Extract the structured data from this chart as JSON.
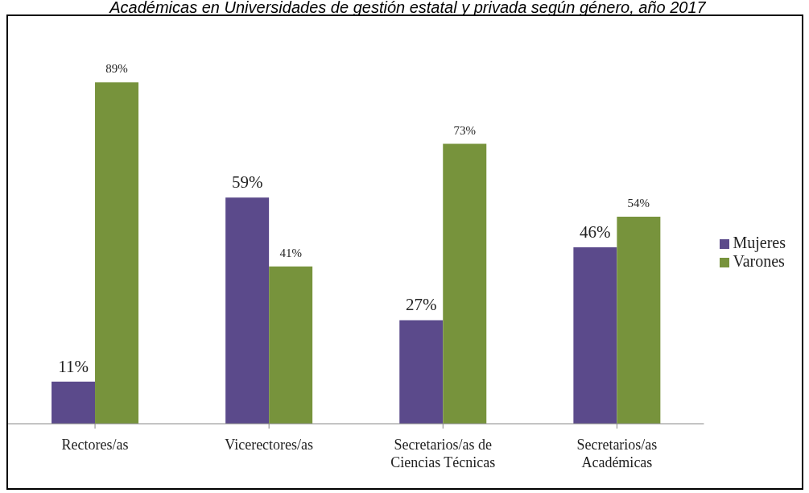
{
  "chart_data": {
    "type": "bar",
    "title": "Académicas en Universidades de gestión estatal y privada según género, año 2017",
    "categories": [
      "Rectores/as",
      "Vicerectores/as",
      "Secretarios/as de Ciencias Técnicas",
      "Secretarios/as Académicas"
    ],
    "series": [
      {
        "name": "Mujeres",
        "color": "#5b4a8b",
        "values": [
          11,
          59,
          27,
          46
        ],
        "value_labels": [
          "11%",
          "59%",
          "27%",
          "46%"
        ]
      },
      {
        "name": "Varones",
        "color": "#77933c",
        "values": [
          89,
          41,
          73,
          54
        ],
        "value_labels": [
          "89%",
          "41%",
          "73%",
          "54%"
        ]
      }
    ],
    "legend": "right",
    "grid": false
  }
}
